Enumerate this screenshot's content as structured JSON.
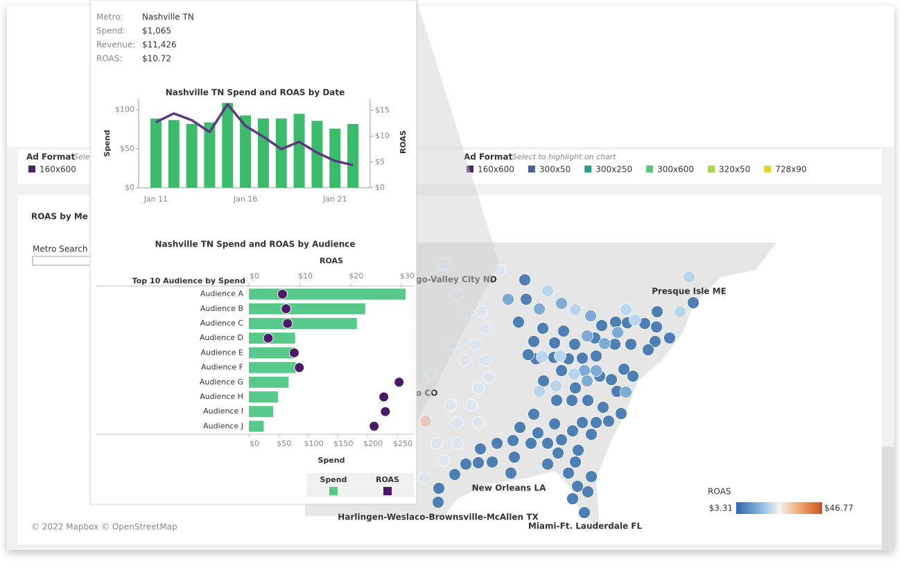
{
  "tooltip": {
    "fields": [
      {
        "label": "Metro:",
        "value": "Nashville TN"
      },
      {
        "label": "Spend:",
        "value": "$1,065"
      },
      {
        "label": "Revenue:",
        "value": "$11,426"
      },
      {
        "label": "ROAS:",
        "value": "$10.72"
      }
    ]
  },
  "ad_format_left": {
    "title": "Ad Format",
    "hint": "Sele",
    "items": [
      {
        "name": "160x600",
        "color": "#4f2466"
      }
    ]
  },
  "ad_format": {
    "title": "Ad Format",
    "hint": "Select to highlight on chart",
    "items": [
      {
        "name": "160x600",
        "color": "#4f2466"
      },
      {
        "name": "300x50",
        "color": "#4a6294"
      },
      {
        "name": "300x250",
        "color": "#2a9a8c"
      },
      {
        "name": "300x600",
        "color": "#57c47e"
      },
      {
        "name": "320x50",
        "color": "#a6d84f"
      },
      {
        "name": "728x90",
        "color": "#e4d42a"
      }
    ]
  },
  "map": {
    "title": "ROAS by Me",
    "search_label": "Metro Search",
    "labels": [
      "go-Valley City ND",
      "Presque Isle ME",
      "o CO",
      "New Orleans LA",
      "Harlingen-Weslaco-Brownsville-McAllen TX",
      "Miami-Ft. Lauderdale FL"
    ],
    "attribution": "© 2022 Mapbox © OpenStreetMap"
  },
  "roas_legend": {
    "title": "ROAS",
    "min": "$3.31",
    "max": "$46.77"
  },
  "chart_data": [
    {
      "type": "combo",
      "title": "Nashville TN Spend and ROAS by Date",
      "categories": [
        "Jan 11",
        null,
        null,
        null,
        null,
        "Jan 16",
        null,
        null,
        null,
        null,
        "Jan 21",
        null
      ],
      "series": [
        {
          "name": "Spend",
          "color": "#3dbb6d",
          "values": [
            89,
            87,
            82,
            84,
            109,
            93,
            89,
            89,
            95,
            86,
            76,
            82
          ]
        },
        {
          "name": "ROAS",
          "color": "#5b3a7e",
          "axis": "y2",
          "values": [
            12.7,
            14.4,
            13.1,
            10.8,
            16.2,
            12,
            9.9,
            7.5,
            8.9,
            6.8,
            5.2,
            4.4
          ]
        }
      ],
      "ylabel": "Spend",
      "y2label": "ROAS",
      "ylim": [
        0,
        114
      ],
      "yticks": [
        {
          "value": 0,
          "label": "$0"
        },
        {
          "value": 50,
          "label": "$50"
        },
        {
          "value": 100,
          "label": "$100"
        }
      ],
      "y2lim": [
        0,
        17.2
      ],
      "y2ticks": [
        {
          "value": 0,
          "label": "$0"
        },
        {
          "value": 5,
          "label": "$5"
        },
        {
          "value": 10,
          "label": "$10"
        },
        {
          "value": 15,
          "label": "$15"
        }
      ]
    },
    {
      "type": "barh",
      "title": "Nashville TN Spend and ROAS by Audience",
      "categories": [
        "Audience A",
        "Audience B",
        "Audience C",
        "Audience D",
        "Audience E",
        "Audience F",
        "Audience G",
        "Audience H",
        "Audience I",
        "Audience J"
      ],
      "series": [
        {
          "name": "Spend",
          "color": "#57c98a",
          "values": [
            264,
            196,
            182,
            78,
            78,
            79,
            67,
            49,
            41,
            25
          ]
        },
        {
          "name": "ROAS",
          "color": "#4b1a66",
          "axis": "x2",
          "values": [
            6.6,
            7.3,
            7.6,
            3.8,
            8.9,
            9.9,
            29.5,
            26.5,
            26.8,
            24.6
          ]
        }
      ],
      "ylabel": "Top 10 Audience by Spend",
      "xlabel": "Spend",
      "x2label": "ROAS",
      "xlim": [
        0,
        278
      ],
      "xticks": [
        {
          "value": 0,
          "label": "$0"
        },
        {
          "value": 50,
          "label": "$50"
        },
        {
          "value": 100,
          "label": "$100"
        },
        {
          "value": 150,
          "label": "$150"
        },
        {
          "value": 200,
          "label": "$200"
        },
        {
          "value": 250,
          "label": "$250"
        }
      ],
      "x2lim": [
        0,
        32.4
      ],
      "x2ticks": [
        {
          "value": 0,
          "label": "$0"
        },
        {
          "value": 10,
          "label": "$10"
        },
        {
          "value": 20,
          "label": "$20"
        },
        {
          "value": 30,
          "label": "$30"
        }
      ]
    }
  ]
}
